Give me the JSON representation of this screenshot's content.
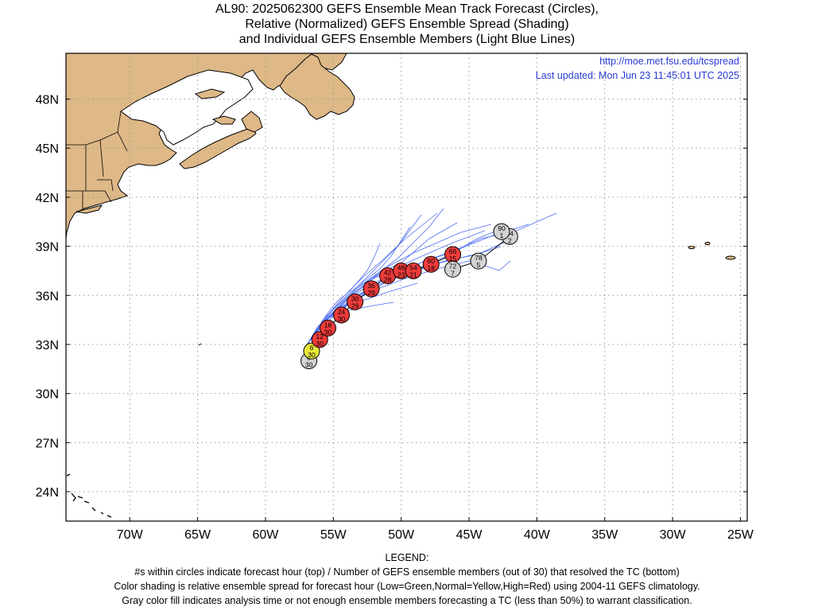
{
  "title": {
    "line1": "AL90: 2025062300 GEFS Ensemble Mean Track Forecast (Circles),",
    "line2": "Relative (Normalized) GEFS Ensemble Spread (Shading)",
    "line3": "and Individual GEFS Ensemble Members (Light Blue Lines)"
  },
  "header_info": {
    "url": "http://moe.met.fsu.edu/tcspread",
    "updated": "Last updated: Mon Jun 23 11:45:01 UTC 2025"
  },
  "colors": {
    "land": "#deb887",
    "ocean": "#ffffff",
    "member_track": "#4f6ef0",
    "high_spread": "#ee3b3b",
    "normal_spread": "#e8e83a",
    "analysis_gray": "#d3d3d3",
    "grid": "#9a9a9a",
    "url": "#2a3bd6"
  },
  "legend": {
    "heading": "LEGEND:",
    "line1": "#s within circles indicate forecast hour (top) / Number of GEFS ensemble members (out of 30) that resolved the TC (bottom)",
    "line2": "Color shading is relative ensemble spread for forecast hour (Low=Green,Normal=Yellow,High=Red) using 2004-11 GEFS climatology.",
    "line3": "Gray color fill indicates analysis time or not enough ensemble members forecasting a TC (less than 50%) to warrant classification."
  },
  "chart_data": {
    "type": "scatter",
    "xlim": [
      -74.7,
      -24.5
    ],
    "ylim": [
      22.2,
      50.8
    ],
    "x_ticks": [
      "70W",
      "65W",
      "60W",
      "55W",
      "50W",
      "45W",
      "40W",
      "35W",
      "30W",
      "25W"
    ],
    "x_tick_values": [
      -70,
      -65,
      -60,
      -55,
      -50,
      -45,
      -40,
      -35,
      -30,
      -25
    ],
    "y_ticks": [
      "24N",
      "27N",
      "30N",
      "33N",
      "36N",
      "39N",
      "42N",
      "45N",
      "48N"
    ],
    "y_tick_values": [
      24,
      27,
      30,
      33,
      36,
      39,
      42,
      45,
      48
    ],
    "grid": true,
    "mean_track": [
      {
        "hour": "0",
        "members": "30",
        "lon": -56.8,
        "lat": 32.0,
        "spread": "gray"
      },
      {
        "hour": "6",
        "members": "30",
        "lon": -56.6,
        "lat": 32.6,
        "spread": "normal"
      },
      {
        "hour": "12",
        "members": "30",
        "lon": -56.0,
        "lat": 33.3,
        "spread": "high"
      },
      {
        "hour": "18",
        "members": "30",
        "lon": -55.4,
        "lat": 34.0,
        "spread": "high"
      },
      {
        "hour": "24",
        "members": "30",
        "lon": -54.4,
        "lat": 34.8,
        "spread": "high"
      },
      {
        "hour": "30",
        "members": "29",
        "lon": -53.4,
        "lat": 35.6,
        "spread": "high"
      },
      {
        "hour": "36",
        "members": "29",
        "lon": -52.2,
        "lat": 36.4,
        "spread": "high"
      },
      {
        "hour": "42",
        "members": "28",
        "lon": -51.0,
        "lat": 37.2,
        "spread": "high"
      },
      {
        "hour": "48",
        "members": "23",
        "lon": -50.0,
        "lat": 37.5,
        "spread": "high"
      },
      {
        "hour": "54",
        "members": "21",
        "lon": -49.1,
        "lat": 37.5,
        "spread": "high"
      },
      {
        "hour": "60",
        "members": "18",
        "lon": -47.8,
        "lat": 37.9,
        "spread": "high"
      },
      {
        "hour": "66",
        "members": "15",
        "lon": -46.2,
        "lat": 38.5,
        "spread": "high"
      },
      {
        "hour": "72",
        "members": "7",
        "lon": -46.2,
        "lat": 37.6,
        "spread": "gray"
      },
      {
        "hour": "78",
        "members": "5",
        "lon": -44.3,
        "lat": 38.1,
        "spread": "gray"
      },
      {
        "hour": "84",
        "members": "2",
        "lon": -42.0,
        "lat": 39.6,
        "spread": "gray"
      },
      {
        "hour": "90",
        "members": "1",
        "lon": -42.6,
        "lat": 39.9,
        "spread": "gray"
      }
    ]
  }
}
